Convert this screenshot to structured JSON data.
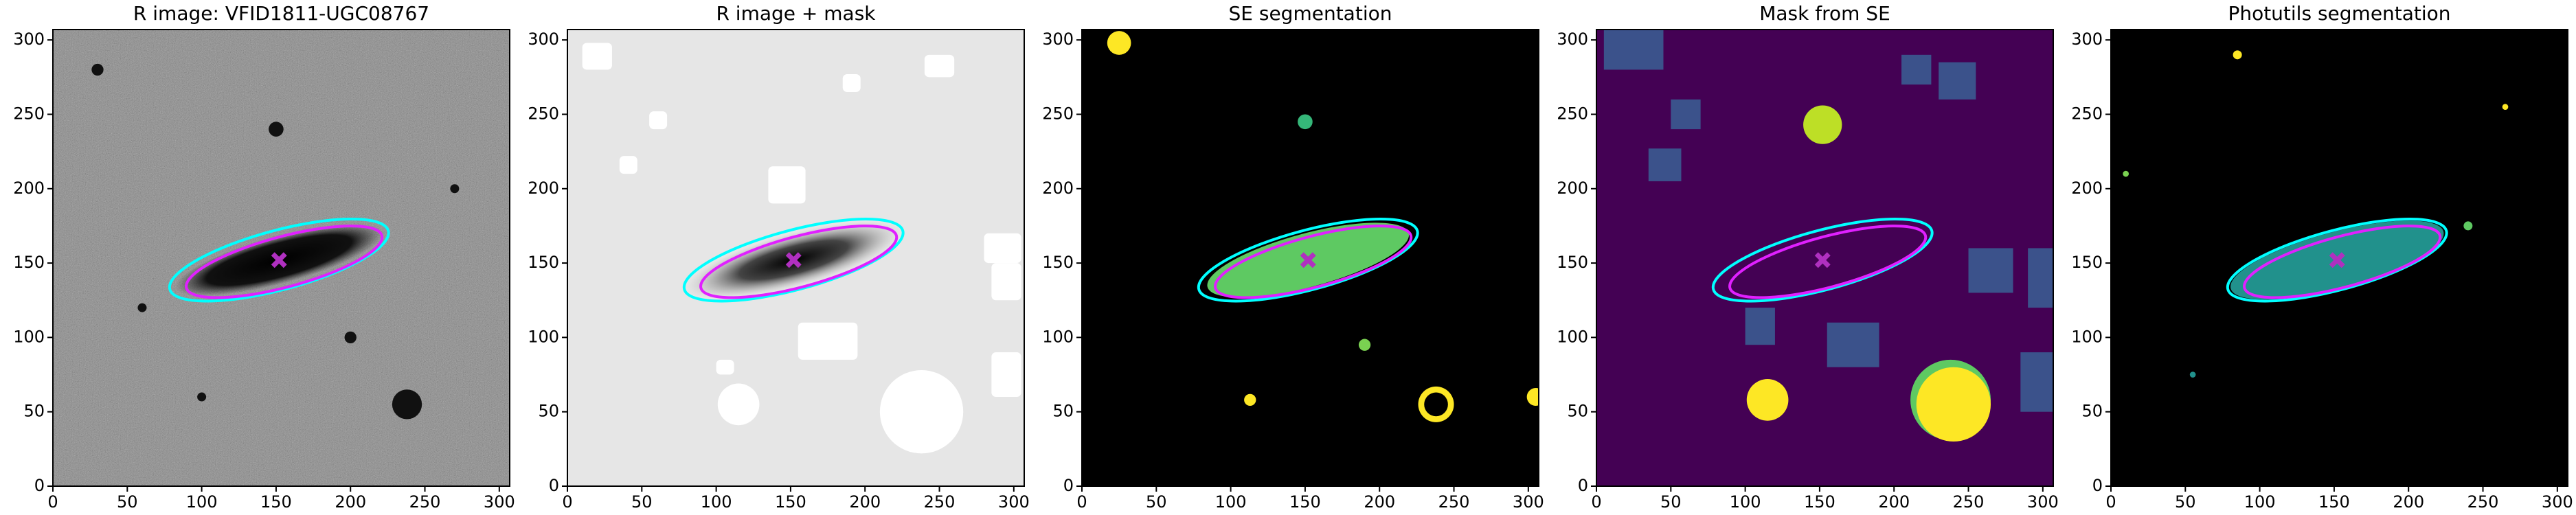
{
  "chart_data": [
    {
      "type": "image",
      "title": "R image: VFID1811-UGC08767",
      "background": "#6a6a6a",
      "xlim": [
        0,
        307
      ],
      "ylim": [
        0,
        307
      ],
      "xticks": [
        0,
        50,
        100,
        150,
        200,
        250,
        300
      ],
      "yticks": [
        0,
        50,
        100,
        150,
        200,
        250,
        300
      ]
    },
    {
      "type": "image",
      "title": "R image + mask",
      "background": "#e6e6e6",
      "xlim": [
        0,
        307
      ],
      "ylim": [
        0,
        307
      ],
      "xticks": [
        0,
        50,
        100,
        150,
        200,
        250,
        300
      ],
      "yticks": [
        0,
        50,
        100,
        150,
        200,
        250,
        300
      ]
    },
    {
      "type": "image",
      "title": "SE segmentation",
      "background": "#000000",
      "xlim": [
        0,
        307
      ],
      "ylim": [
        0,
        307
      ],
      "xticks": [
        0,
        50,
        100,
        150,
        200,
        250,
        300
      ],
      "yticks": [
        0,
        50,
        100,
        150,
        200,
        250,
        300
      ]
    },
    {
      "type": "image",
      "title": "Mask from SE",
      "background": "#440154",
      "xlim": [
        0,
        307
      ],
      "ylim": [
        0,
        307
      ],
      "xticks": [
        0,
        50,
        100,
        150,
        200,
        250,
        300
      ],
      "yticks": [
        0,
        50,
        100,
        150,
        200,
        250,
        300
      ]
    },
    {
      "type": "image",
      "title": "Photutils segmentation",
      "background": "#000000",
      "xlim": [
        0,
        307
      ],
      "ylim": [
        0,
        307
      ],
      "xticks": [
        0,
        50,
        100,
        150,
        200,
        250,
        300
      ],
      "yticks": [
        0,
        50,
        100,
        150,
        200,
        250,
        300
      ]
    }
  ]
}
